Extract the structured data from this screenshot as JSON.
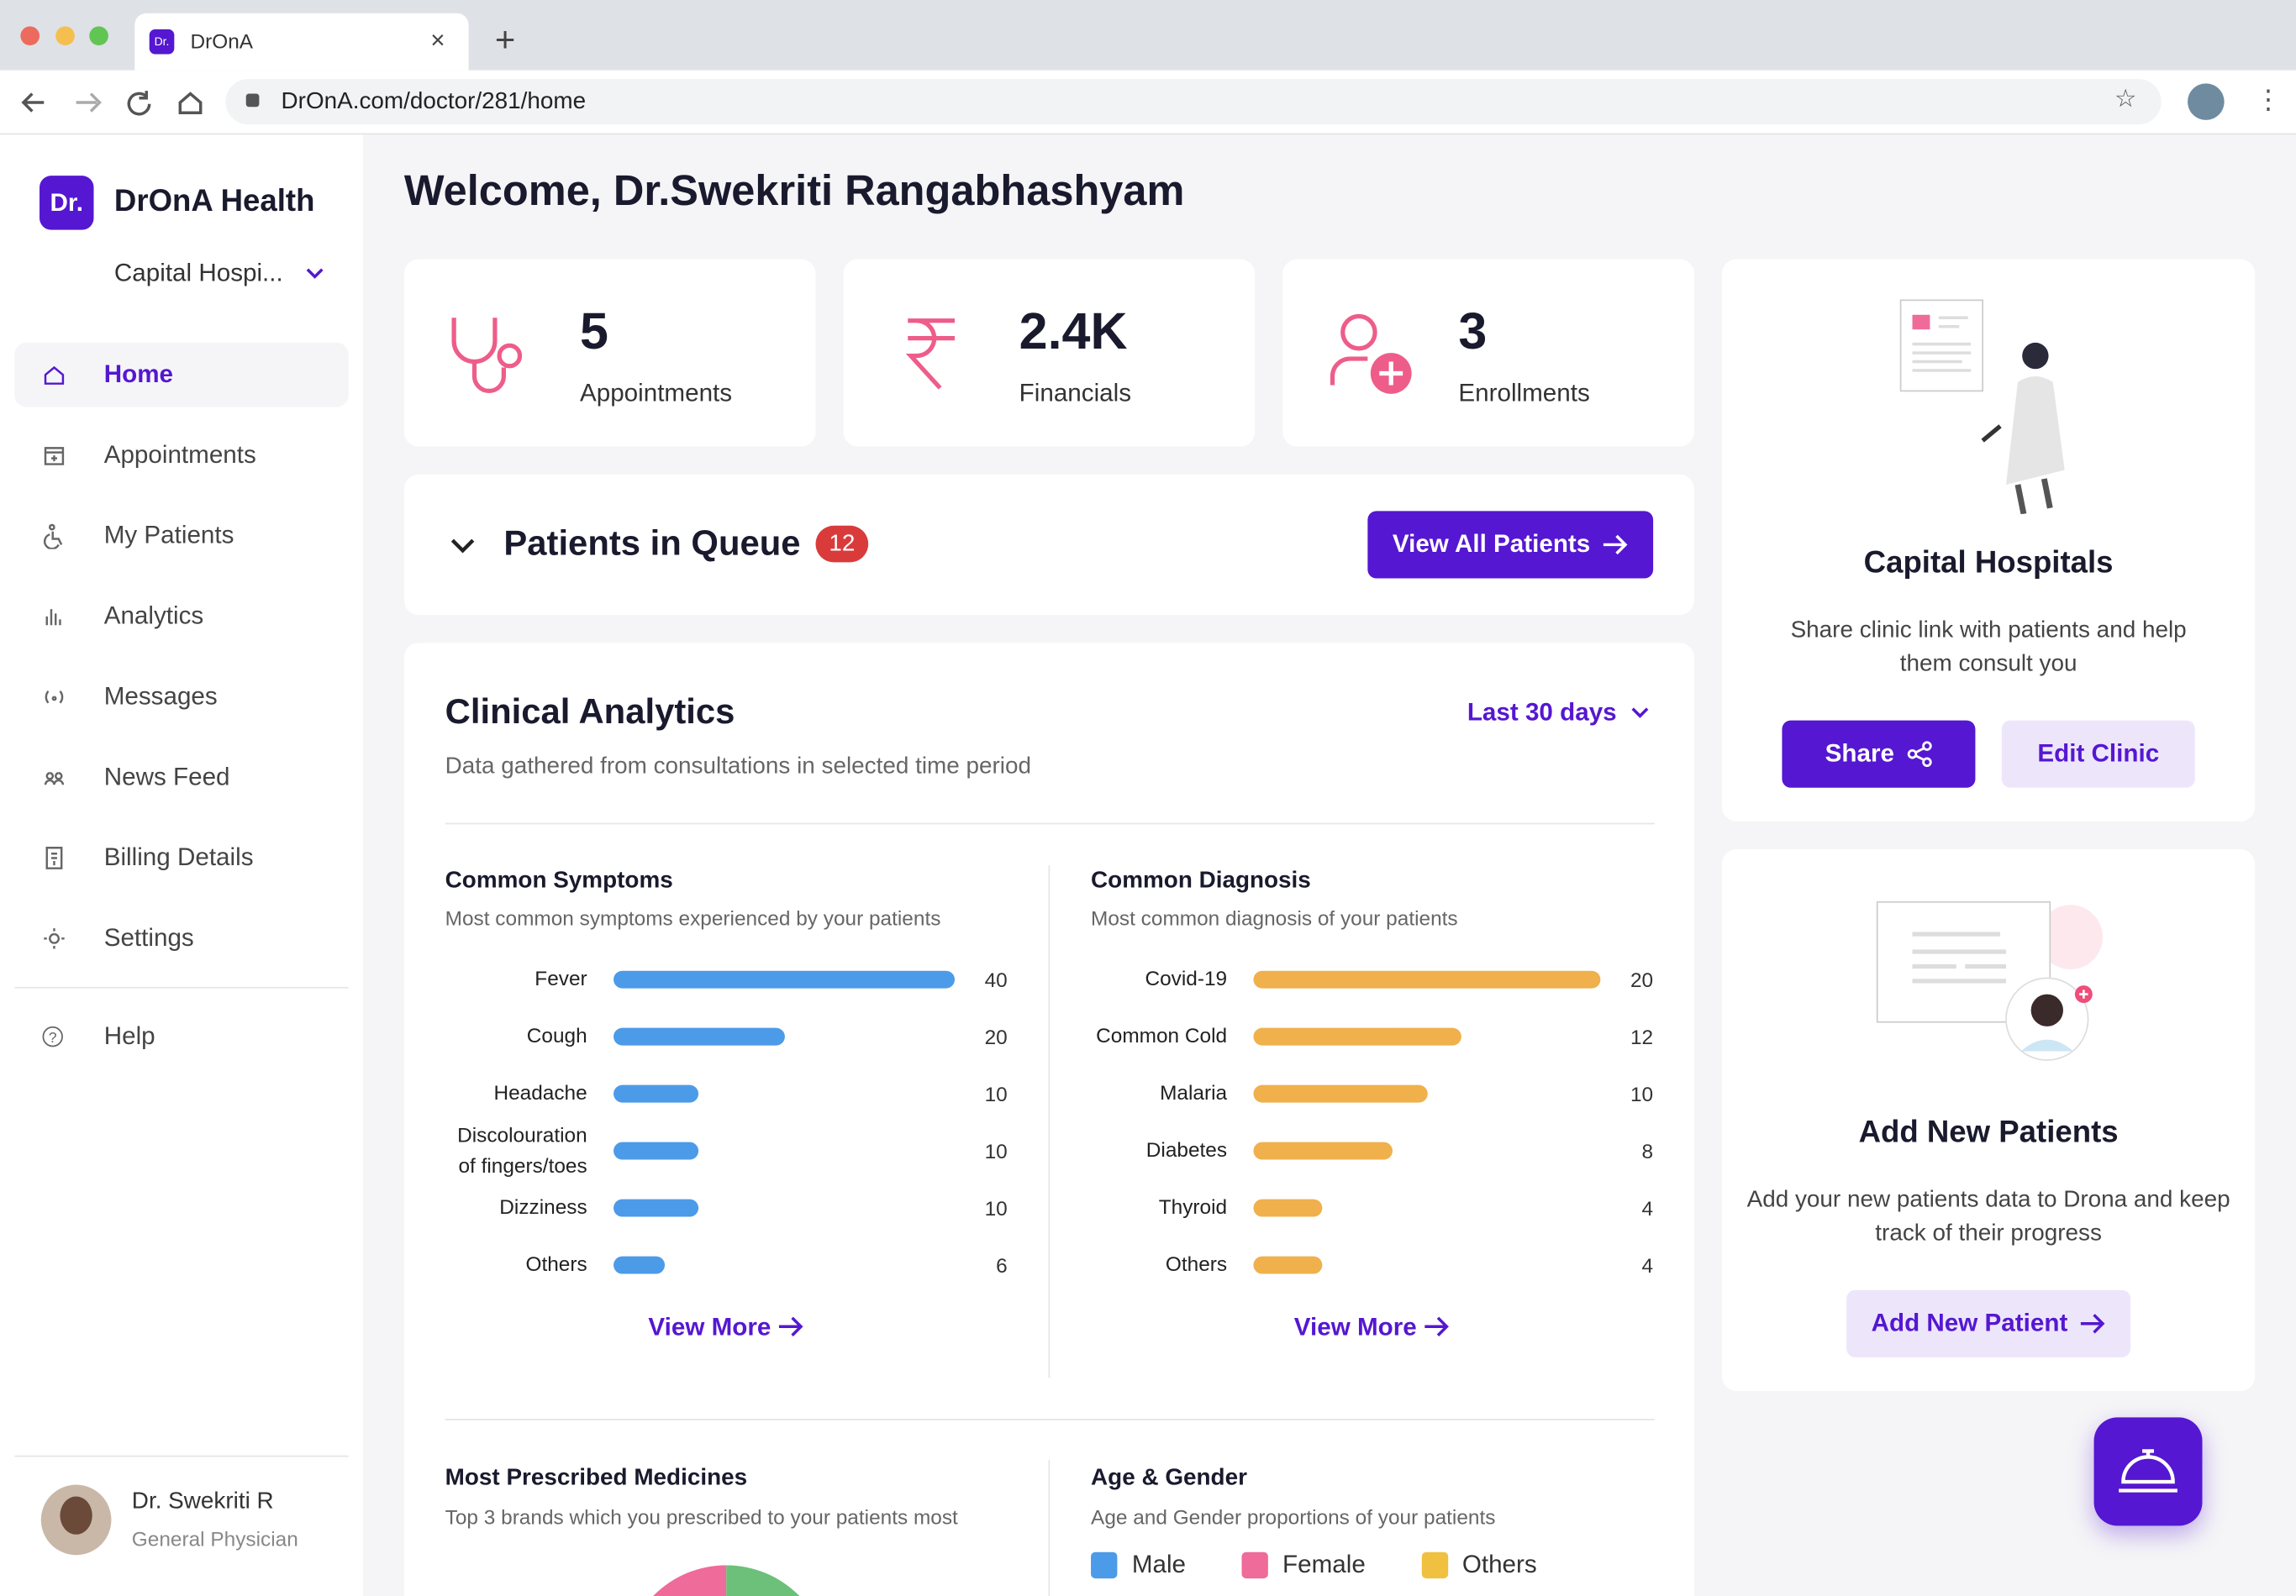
{
  "browser": {
    "tab_title": "DrOnA",
    "url": "DrOnA.com/doctor/281/home"
  },
  "sidebar": {
    "logo": "Dr.",
    "brand": "DrOnA Health",
    "clinic": "Capital Hospi...",
    "nav": [
      "Home",
      "Appointments",
      "My Patients",
      "Analytics",
      "Messages",
      "News Feed",
      "Billing Details",
      "Settings"
    ],
    "help": "Help",
    "user": {
      "name": "Dr. Swekriti R",
      "role": "General Physician"
    }
  },
  "header": {
    "welcome": "Welcome, Dr.Swekriti Rangabhashyam"
  },
  "stats": [
    {
      "value": 5,
      "label": "Appointments"
    },
    {
      "value": "2.4K",
      "label": "Financials"
    },
    {
      "value": 3,
      "label": "Enrollments"
    }
  ],
  "queue": {
    "title": "Patients in Queue",
    "count": 12,
    "button": "View All Patients"
  },
  "analytics": {
    "title": "Clinical Analytics",
    "period": "Last 30 days",
    "subtitle": "Data gathered from consultations in selected time period",
    "charts": [
      {
        "type": "bar",
        "title": "Common Symptoms",
        "subtitle": "Most common symptoms experienced by your patients",
        "categories": [
          "Fever",
          "Cough",
          "Headache",
          "Discolouration of fingers/toes",
          "Dizziness",
          "Others"
        ],
        "values": [
          40,
          20,
          10,
          10,
          10,
          6
        ],
        "color": "#4c9be8",
        "link": "View More"
      },
      {
        "type": "bar",
        "title": "Common Diagnosis",
        "subtitle": "Most common diagnosis of your patients",
        "categories": [
          "Covid-19",
          "Common Cold",
          "Malaria",
          "Diabetes",
          "Thyroid",
          "Others"
        ],
        "values": [
          20,
          12,
          10,
          8,
          4,
          4
        ],
        "color": "#f0b04c",
        "link": "View More"
      }
    ]
  },
  "medicines": {
    "title": "Most Prescribed Medicines",
    "subtitle": "Top 3 brands which you prescribed to your patients most"
  },
  "age_gender": {
    "title": "Age & Gender",
    "subtitle": "Age and Gender proportions of your patients",
    "legend": [
      {
        "name": "Male",
        "color": "#4c9be8"
      },
      {
        "name": "Female",
        "color": "#ef6b9a"
      },
      {
        "name": "Others",
        "color": "#f0c040"
      }
    ]
  },
  "cards": [
    {
      "title": "Capital Hospitals",
      "text": "Share clinic link with patients and help them consult you",
      "buttons": [
        "Share",
        "Edit Clinic"
      ]
    },
    {
      "title": "Add New Patients",
      "text": "Add your new patients data to Drona and keep track of their progress",
      "buttons": [
        "Add New Patient"
      ]
    }
  ]
}
